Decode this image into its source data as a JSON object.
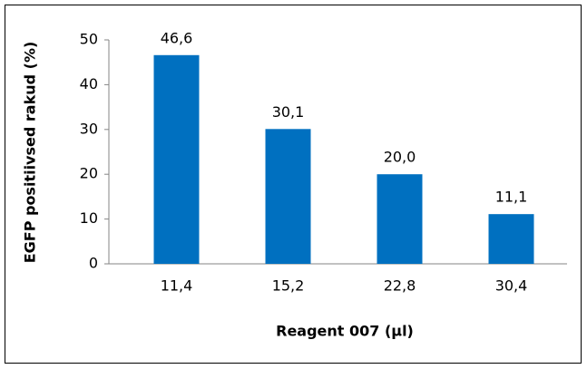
{
  "chart_data": {
    "type": "bar",
    "categories": [
      "11,4",
      "15,2",
      "22,8",
      "30,4"
    ],
    "values": [
      46.6,
      30.1,
      20.0,
      11.1
    ],
    "value_labels": [
      "46,6",
      "30,1",
      "20,0",
      "11,1"
    ],
    "color": "#0070c0",
    "xlabel": "Reagent 007 (µl)",
    "ylabel": "EGFP positiivsed rakud (%)",
    "ylim": [
      0,
      50
    ],
    "yticks": [
      0,
      10,
      20,
      30,
      40,
      50
    ],
    "grid": false
  }
}
